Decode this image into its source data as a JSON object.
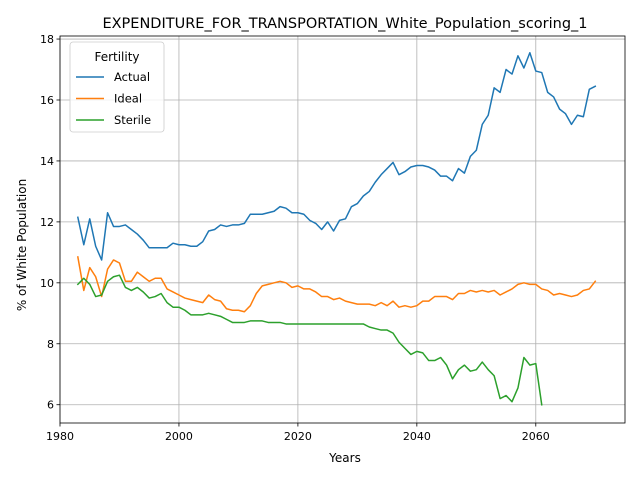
{
  "chart_data": {
    "type": "line",
    "title": "EXPENDITURE_FOR_TRANSPORTATION_White_Population_scoring_1",
    "xlabel": "Years",
    "ylabel": "% of White Population",
    "xlim": [
      1980,
      2075
    ],
    "ylim": [
      5.4,
      18.1
    ],
    "xticks": [
      1980,
      2000,
      2020,
      2040,
      2060
    ],
    "yticks": [
      6,
      8,
      10,
      12,
      14,
      16,
      18
    ],
    "grid": true,
    "legend": {
      "title": "Fertility",
      "placement": "upper-left"
    },
    "series": [
      {
        "name": "Actual",
        "color": "#1f77b4",
        "points": [
          [
            1983,
            12.15
          ],
          [
            1984,
            11.25
          ],
          [
            1985,
            12.1
          ],
          [
            1986,
            11.2
          ],
          [
            1987,
            10.75
          ],
          [
            1988,
            12.3
          ],
          [
            1989,
            11.85
          ],
          [
            1990,
            11.85
          ],
          [
            1991,
            11.9
          ],
          [
            1992,
            11.75
          ],
          [
            1993,
            11.6
          ],
          [
            1994,
            11.4
          ],
          [
            1995,
            11.15
          ],
          [
            1996,
            11.15
          ],
          [
            1997,
            11.15
          ],
          [
            1998,
            11.15
          ],
          [
            1999,
            11.3
          ],
          [
            2000,
            11.25
          ],
          [
            2001,
            11.25
          ],
          [
            2002,
            11.2
          ],
          [
            2003,
            11.2
          ],
          [
            2004,
            11.35
          ],
          [
            2005,
            11.7
          ],
          [
            2006,
            11.75
          ],
          [
            2007,
            11.9
          ],
          [
            2008,
            11.85
          ],
          [
            2009,
            11.9
          ],
          [
            2010,
            11.9
          ],
          [
            2011,
            11.95
          ],
          [
            2012,
            12.25
          ],
          [
            2013,
            12.25
          ],
          [
            2014,
            12.25
          ],
          [
            2015,
            12.3
          ],
          [
            2016,
            12.35
          ],
          [
            2017,
            12.5
          ],
          [
            2018,
            12.45
          ],
          [
            2019,
            12.3
          ],
          [
            2020,
            12.3
          ],
          [
            2021,
            12.25
          ],
          [
            2022,
            12.05
          ],
          [
            2023,
            11.95
          ],
          [
            2024,
            11.75
          ],
          [
            2025,
            12.0
          ],
          [
            2026,
            11.7
          ],
          [
            2027,
            12.05
          ],
          [
            2028,
            12.1
          ],
          [
            2029,
            12.5
          ],
          [
            2030,
            12.6
          ],
          [
            2031,
            12.85
          ],
          [
            2032,
            13.0
          ],
          [
            2033,
            13.3
          ],
          [
            2034,
            13.55
          ],
          [
            2035,
            13.75
          ],
          [
            2036,
            13.95
          ],
          [
            2037,
            13.55
          ],
          [
            2038,
            13.65
          ],
          [
            2039,
            13.8
          ],
          [
            2040,
            13.85
          ],
          [
            2041,
            13.85
          ],
          [
            2042,
            13.8
          ],
          [
            2043,
            13.7
          ],
          [
            2044,
            13.5
          ],
          [
            2045,
            13.5
          ],
          [
            2046,
            13.35
          ],
          [
            2047,
            13.75
          ],
          [
            2048,
            13.6
          ],
          [
            2049,
            14.15
          ],
          [
            2050,
            14.35
          ],
          [
            2051,
            15.2
          ],
          [
            2052,
            15.5
          ],
          [
            2053,
            16.4
          ],
          [
            2054,
            16.25
          ],
          [
            2055,
            17.0
          ],
          [
            2056,
            16.85
          ],
          [
            2057,
            17.45
          ],
          [
            2058,
            17.05
          ],
          [
            2059,
            17.55
          ],
          [
            2060,
            16.95
          ],
          [
            2061,
            16.9
          ],
          [
            2062,
            16.25
          ],
          [
            2063,
            16.1
          ],
          [
            2064,
            15.7
          ],
          [
            2065,
            15.55
          ],
          [
            2066,
            15.2
          ],
          [
            2067,
            15.5
          ],
          [
            2068,
            15.45
          ],
          [
            2069,
            16.35
          ],
          [
            2070,
            16.45
          ]
        ]
      },
      {
        "name": "Ideal",
        "color": "#ff7f0e",
        "points": [
          [
            1983,
            10.85
          ],
          [
            1984,
            9.75
          ],
          [
            1985,
            10.5
          ],
          [
            1986,
            10.2
          ],
          [
            1987,
            9.55
          ],
          [
            1988,
            10.45
          ],
          [
            1989,
            10.75
          ],
          [
            1990,
            10.65
          ],
          [
            1991,
            10.05
          ],
          [
            1992,
            10.05
          ],
          [
            1993,
            10.35
          ],
          [
            1994,
            10.2
          ],
          [
            1995,
            10.05
          ],
          [
            1996,
            10.15
          ],
          [
            1997,
            10.15
          ],
          [
            1998,
            9.8
          ],
          [
            1999,
            9.7
          ],
          [
            2000,
            9.6
          ],
          [
            2001,
            9.5
          ],
          [
            2002,
            9.45
          ],
          [
            2003,
            9.4
          ],
          [
            2004,
            9.35
          ],
          [
            2005,
            9.6
          ],
          [
            2006,
            9.45
          ],
          [
            2007,
            9.4
          ],
          [
            2008,
            9.15
          ],
          [
            2009,
            9.1
          ],
          [
            2010,
            9.1
          ],
          [
            2011,
            9.05
          ],
          [
            2012,
            9.25
          ],
          [
            2013,
            9.65
          ],
          [
            2014,
            9.9
          ],
          [
            2015,
            9.95
          ],
          [
            2016,
            10.0
          ],
          [
            2017,
            10.05
          ],
          [
            2018,
            10.0
          ],
          [
            2019,
            9.85
          ],
          [
            2020,
            9.9
          ],
          [
            2021,
            9.8
          ],
          [
            2022,
            9.8
          ],
          [
            2023,
            9.7
          ],
          [
            2024,
            9.55
          ],
          [
            2025,
            9.55
          ],
          [
            2026,
            9.45
          ],
          [
            2027,
            9.5
          ],
          [
            2028,
            9.4
          ],
          [
            2029,
            9.35
          ],
          [
            2030,
            9.3
          ],
          [
            2031,
            9.3
          ],
          [
            2032,
            9.3
          ],
          [
            2033,
            9.25
          ],
          [
            2034,
            9.35
          ],
          [
            2035,
            9.25
          ],
          [
            2036,
            9.4
          ],
          [
            2037,
            9.2
          ],
          [
            2038,
            9.25
          ],
          [
            2039,
            9.2
          ],
          [
            2040,
            9.25
          ],
          [
            2041,
            9.4
          ],
          [
            2042,
            9.4
          ],
          [
            2043,
            9.55
          ],
          [
            2044,
            9.55
          ],
          [
            2045,
            9.55
          ],
          [
            2046,
            9.45
          ],
          [
            2047,
            9.65
          ],
          [
            2048,
            9.65
          ],
          [
            2049,
            9.75
          ],
          [
            2050,
            9.7
          ],
          [
            2051,
            9.75
          ],
          [
            2052,
            9.7
          ],
          [
            2053,
            9.75
          ],
          [
            2054,
            9.6
          ],
          [
            2055,
            9.7
          ],
          [
            2056,
            9.8
          ],
          [
            2057,
            9.95
          ],
          [
            2058,
            10.0
          ],
          [
            2059,
            9.95
          ],
          [
            2060,
            9.95
          ],
          [
            2061,
            9.8
          ],
          [
            2062,
            9.75
          ],
          [
            2063,
            9.6
          ],
          [
            2064,
            9.65
          ],
          [
            2065,
            9.6
          ],
          [
            2066,
            9.55
          ],
          [
            2067,
            9.6
          ],
          [
            2068,
            9.75
          ],
          [
            2069,
            9.8
          ],
          [
            2070,
            10.05
          ]
        ]
      },
      {
        "name": "Sterile",
        "color": "#2ca02c",
        "points": [
          [
            1983,
            9.95
          ],
          [
            1984,
            10.15
          ],
          [
            1985,
            9.95
          ],
          [
            1986,
            9.55
          ],
          [
            1987,
            9.6
          ],
          [
            1988,
            10.05
          ],
          [
            1989,
            10.2
          ],
          [
            1990,
            10.25
          ],
          [
            1991,
            9.85
          ],
          [
            1992,
            9.75
          ],
          [
            1993,
            9.85
          ],
          [
            1994,
            9.7
          ],
          [
            1995,
            9.5
          ],
          [
            1996,
            9.55
          ],
          [
            1997,
            9.65
          ],
          [
            1998,
            9.35
          ],
          [
            1999,
            9.2
          ],
          [
            2000,
            9.2
          ],
          [
            2001,
            9.1
          ],
          [
            2002,
            8.95
          ],
          [
            2003,
            8.95
          ],
          [
            2004,
            8.95
          ],
          [
            2005,
            9.0
          ],
          [
            2006,
            8.95
          ],
          [
            2007,
            8.9
          ],
          [
            2008,
            8.8
          ],
          [
            2009,
            8.7
          ],
          [
            2010,
            8.7
          ],
          [
            2011,
            8.7
          ],
          [
            2012,
            8.75
          ],
          [
            2013,
            8.75
          ],
          [
            2014,
            8.75
          ],
          [
            2015,
            8.7
          ],
          [
            2016,
            8.7
          ],
          [
            2017,
            8.7
          ],
          [
            2018,
            8.65
          ],
          [
            2019,
            8.65
          ],
          [
            2020,
            8.65
          ],
          [
            2021,
            8.65
          ],
          [
            2022,
            8.65
          ],
          [
            2023,
            8.65
          ],
          [
            2024,
            8.65
          ],
          [
            2025,
            8.65
          ],
          [
            2026,
            8.65
          ],
          [
            2027,
            8.65
          ],
          [
            2028,
            8.65
          ],
          [
            2029,
            8.65
          ],
          [
            2030,
            8.65
          ],
          [
            2031,
            8.65
          ],
          [
            2032,
            8.55
          ],
          [
            2033,
            8.5
          ],
          [
            2034,
            8.45
          ],
          [
            2035,
            8.45
          ],
          [
            2036,
            8.35
          ],
          [
            2037,
            8.05
          ],
          [
            2038,
            7.85
          ],
          [
            2039,
            7.65
          ],
          [
            2040,
            7.75
          ],
          [
            2041,
            7.7
          ],
          [
            2042,
            7.45
          ],
          [
            2043,
            7.45
          ],
          [
            2044,
            7.55
          ],
          [
            2045,
            7.3
          ],
          [
            2046,
            6.85
          ],
          [
            2047,
            7.15
          ],
          [
            2048,
            7.3
          ],
          [
            2049,
            7.1
          ],
          [
            2050,
            7.15
          ],
          [
            2051,
            7.4
          ],
          [
            2052,
            7.15
          ],
          [
            2053,
            6.95
          ],
          [
            2054,
            6.2
          ],
          [
            2055,
            6.3
          ],
          [
            2056,
            6.1
          ],
          [
            2057,
            6.55
          ],
          [
            2058,
            7.55
          ],
          [
            2059,
            7.3
          ],
          [
            2060,
            7.35
          ],
          [
            2061,
            6.0
          ]
        ]
      }
    ]
  }
}
